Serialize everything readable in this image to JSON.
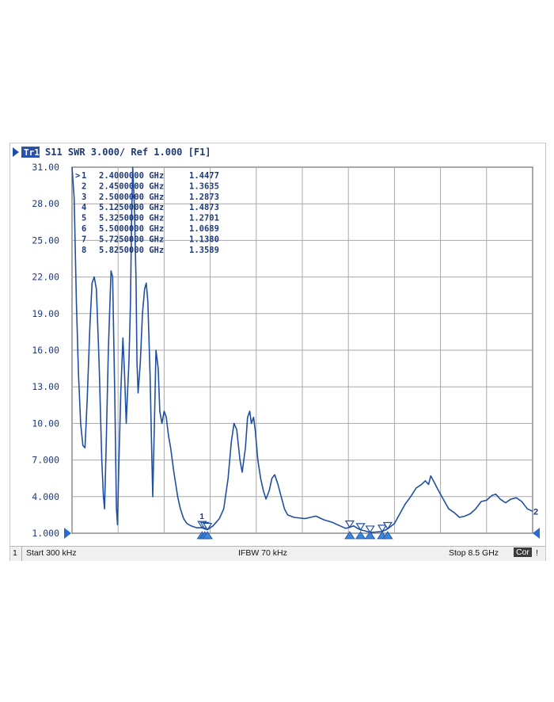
{
  "header": {
    "trace_num": "Tr1",
    "title": "S11  SWR 3.000/ Ref 1.000  [F1]"
  },
  "status": {
    "channel": "1",
    "start": "Start 300 kHz",
    "ifbw": "IFBW 70 kHz",
    "stop": "Stop 8.5 GHz",
    "cor": "Cor",
    "excl": "!"
  },
  "colors": {
    "trace": "#1f4fa3",
    "grid": "#a8a8a8",
    "text": "#1f3a7a"
  },
  "chart_data": {
    "type": "line",
    "title": "S11  SWR 3.000/ Ref 1.000  [F1]",
    "xlabel": "",
    "ylabel": "",
    "xlim": [
      0.0003,
      8.5
    ],
    "ylim": [
      1.0,
      31.0
    ],
    "x_unit": "GHz",
    "yticks": [
      "31.00",
      "28.00",
      "25.00",
      "22.00",
      "19.00",
      "16.00",
      "13.00",
      "10.00",
      "7.000",
      "4.000",
      "1.000"
    ],
    "grid": true,
    "markers": [
      {
        "num": "1",
        "freq": "2.4000000 GHz",
        "value": "1.4477",
        "x": 2.4,
        "y": 1.4477
      },
      {
        "num": "2",
        "freq": "2.4500000 GHz",
        "value": "1.3635",
        "x": 2.45,
        "y": 1.3635
      },
      {
        "num": "3",
        "freq": "2.5000000 GHz",
        "value": "1.2873",
        "x": 2.5,
        "y": 1.2873
      },
      {
        "num": "4",
        "freq": "5.1250000 GHz",
        "value": "1.4873",
        "x": 5.125,
        "y": 1.4873
      },
      {
        "num": "5",
        "freq": "5.3250000 GHz",
        "value": "1.2701",
        "x": 5.325,
        "y": 1.2701
      },
      {
        "num": "6",
        "freq": "5.5000000 GHz",
        "value": "1.0689",
        "x": 5.5,
        "y": 1.0689
      },
      {
        "num": "7",
        "freq": "5.7250000 GHz",
        "value": "1.1380",
        "x": 5.725,
        "y": 1.138
      },
      {
        "num": "8",
        "freq": "5.8250000 GHz",
        "value": "1.3589",
        "x": 5.825,
        "y": 1.3589
      }
    ],
    "series": [
      {
        "values": [
          [
            0.0003,
            31.0
          ],
          [
            0.04,
            28.5
          ],
          [
            0.08,
            20.0
          ],
          [
            0.12,
            14.0
          ],
          [
            0.16,
            10.0
          ],
          [
            0.2,
            8.2
          ],
          [
            0.24,
            8.0
          ],
          [
            0.28,
            12.0
          ],
          [
            0.33,
            18.0
          ],
          [
            0.37,
            21.5
          ],
          [
            0.41,
            22.0
          ],
          [
            0.45,
            21.0
          ],
          [
            0.5,
            15.0
          ],
          [
            0.55,
            7.0
          ],
          [
            0.58,
            4.0
          ],
          [
            0.6,
            3.0
          ],
          [
            0.63,
            8.0
          ],
          [
            0.67,
            16.0
          ],
          [
            0.72,
            22.5
          ],
          [
            0.75,
            22.0
          ],
          [
            0.79,
            12.0
          ],
          [
            0.82,
            3.0
          ],
          [
            0.84,
            1.7
          ],
          [
            0.86,
            6.0
          ],
          [
            0.9,
            12.5
          ],
          [
            0.94,
            17.0
          ],
          [
            0.97,
            14.0
          ],
          [
            1.0,
            10.0
          ],
          [
            1.02,
            12.0
          ],
          [
            1.05,
            15.0
          ],
          [
            1.08,
            20.0
          ],
          [
            1.1,
            27.0
          ],
          [
            1.12,
            31.0
          ],
          [
            1.15,
            28.0
          ],
          [
            1.18,
            22.0
          ],
          [
            1.2,
            15.0
          ],
          [
            1.22,
            12.5
          ],
          [
            1.26,
            15.0
          ],
          [
            1.3,
            19.0
          ],
          [
            1.34,
            21.0
          ],
          [
            1.37,
            21.5
          ],
          [
            1.4,
            20.0
          ],
          [
            1.44,
            14.0
          ],
          [
            1.47,
            8.0
          ],
          [
            1.49,
            4.0
          ],
          [
            1.52,
            10.0
          ],
          [
            1.55,
            16.0
          ],
          [
            1.59,
            14.5
          ],
          [
            1.62,
            11.0
          ],
          [
            1.66,
            10.0
          ],
          [
            1.7,
            11.0
          ],
          [
            1.74,
            10.5
          ],
          [
            1.78,
            9.0
          ],
          [
            1.82,
            8.0
          ],
          [
            1.88,
            6.0
          ],
          [
            1.95,
            4.0
          ],
          [
            2.0,
            3.0
          ],
          [
            2.06,
            2.2
          ],
          [
            2.12,
            1.8
          ],
          [
            2.2,
            1.6
          ],
          [
            2.3,
            1.45
          ],
          [
            2.4,
            1.45
          ],
          [
            2.45,
            1.36
          ],
          [
            2.5,
            1.29
          ],
          [
            2.6,
            1.6
          ],
          [
            2.72,
            2.2
          ],
          [
            2.8,
            3.0
          ],
          [
            2.88,
            5.5
          ],
          [
            2.94,
            8.5
          ],
          [
            2.99,
            10.0
          ],
          [
            3.04,
            9.5
          ],
          [
            3.1,
            7.0
          ],
          [
            3.14,
            6.0
          ],
          [
            3.2,
            8.0
          ],
          [
            3.24,
            10.5
          ],
          [
            3.28,
            11.0
          ],
          [
            3.31,
            10.0
          ],
          [
            3.35,
            10.5
          ],
          [
            3.38,
            9.5
          ],
          [
            3.43,
            7.0
          ],
          [
            3.48,
            5.5
          ],
          [
            3.53,
            4.5
          ],
          [
            3.58,
            3.8
          ],
          [
            3.64,
            4.5
          ],
          [
            3.69,
            5.5
          ],
          [
            3.74,
            5.8
          ],
          [
            3.8,
            5.0
          ],
          [
            3.86,
            4.0
          ],
          [
            3.92,
            3.0
          ],
          [
            3.98,
            2.5
          ],
          [
            4.1,
            2.3
          ],
          [
            4.3,
            2.2
          ],
          [
            4.5,
            2.4
          ],
          [
            4.65,
            2.1
          ],
          [
            4.8,
            1.9
          ],
          [
            4.95,
            1.6
          ],
          [
            5.05,
            1.4
          ],
          [
            5.125,
            1.49
          ],
          [
            5.2,
            1.6
          ],
          [
            5.25,
            1.45
          ],
          [
            5.325,
            1.27
          ],
          [
            5.4,
            1.2
          ],
          [
            5.5,
            1.07
          ],
          [
            5.6,
            1.1
          ],
          [
            5.725,
            1.14
          ],
          [
            5.825,
            1.36
          ],
          [
            5.95,
            1.8
          ],
          [
            6.05,
            2.6
          ],
          [
            6.15,
            3.4
          ],
          [
            6.25,
            4.0
          ],
          [
            6.35,
            4.7
          ],
          [
            6.45,
            5.0
          ],
          [
            6.52,
            5.3
          ],
          [
            6.58,
            5.0
          ],
          [
            6.62,
            5.7
          ],
          [
            6.68,
            5.2
          ],
          [
            6.75,
            4.6
          ],
          [
            6.85,
            3.8
          ],
          [
            6.95,
            3.0
          ],
          [
            7.05,
            2.7
          ],
          [
            7.15,
            2.3
          ],
          [
            7.25,
            2.4
          ],
          [
            7.35,
            2.6
          ],
          [
            7.45,
            3.0
          ],
          [
            7.55,
            3.6
          ],
          [
            7.65,
            3.7
          ],
          [
            7.75,
            4.1
          ],
          [
            7.82,
            4.2
          ],
          [
            7.9,
            3.8
          ],
          [
            8.0,
            3.5
          ],
          [
            8.1,
            3.8
          ],
          [
            8.2,
            3.9
          ],
          [
            8.3,
            3.6
          ],
          [
            8.4,
            3.0
          ],
          [
            8.5,
            2.8
          ]
        ]
      }
    ]
  }
}
